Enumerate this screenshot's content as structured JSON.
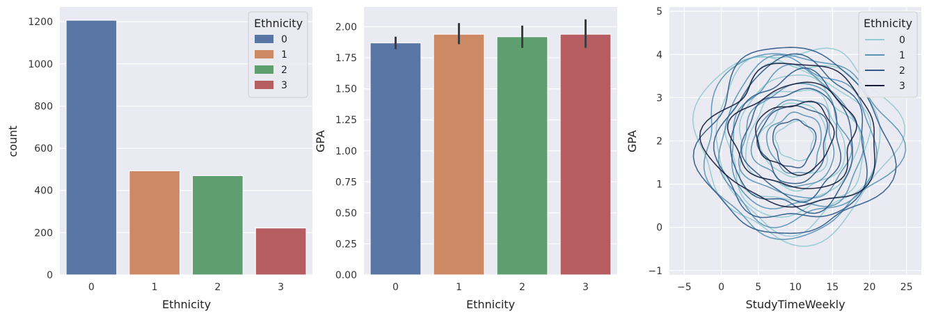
{
  "chart_data": [
    {
      "type": "bar",
      "xlabel": "Ethnicity",
      "ylabel": "count",
      "categories": [
        "0",
        "1",
        "2",
        "3"
      ],
      "values": [
        1207,
        493,
        470,
        222
      ],
      "ylim": [
        0,
        1270
      ],
      "yticks": [
        0,
        200,
        400,
        600,
        800,
        1000,
        1200
      ],
      "colors": [
        "#5875a4",
        "#cc8963",
        "#5f9e6e",
        "#b55d60"
      ],
      "grid": true,
      "legend": {
        "title": "Ethnicity",
        "position": "top-right",
        "entries": [
          "0",
          "1",
          "2",
          "3"
        ]
      }
    },
    {
      "type": "bar",
      "xlabel": "Ethnicity",
      "ylabel": "GPA",
      "categories": [
        "0",
        "1",
        "2",
        "3"
      ],
      "values": [
        1.87,
        1.94,
        1.92,
        1.94
      ],
      "errors": [
        [
          1.82,
          1.92
        ],
        [
          1.86,
          2.03
        ],
        [
          1.83,
          2.01
        ],
        [
          1.83,
          2.06
        ]
      ],
      "ylim": [
        0,
        2.16
      ],
      "yticks": [
        "0.00",
        "0.25",
        "0.50",
        "0.75",
        "1.00",
        "1.25",
        "1.50",
        "1.75",
        "2.00"
      ],
      "colors": [
        "#5875a4",
        "#cc8963",
        "#5f9e6e",
        "#b55d60"
      ],
      "grid": true
    },
    {
      "type": "kde-contour",
      "xlabel": "StudyTimeWeekly",
      "ylabel": "GPA",
      "xlim": [
        -7,
        27
      ],
      "ylim": [
        -1.1,
        5.1
      ],
      "xticks": [
        -5,
        0,
        5,
        10,
        15,
        20,
        25
      ],
      "yticks": [
        -1,
        0,
        1,
        2,
        3,
        4,
        5
      ],
      "grid": true,
      "legend": {
        "title": "Ethnicity",
        "position": "top-right",
        "entries": [
          "0",
          "1",
          "2",
          "3"
        ]
      },
      "series": [
        {
          "name": "0",
          "color": "#93cbd2",
          "center": [
            10,
            2
          ],
          "radii": [
            [
              12.3,
              2.2
            ],
            [
              11,
              1.95
            ],
            [
              9.5,
              1.7
            ],
            [
              8,
              1.45
            ],
            [
              6.5,
              1.15
            ],
            [
              4.5,
              0.85
            ],
            [
              2.5,
              0.45
            ]
          ]
        },
        {
          "name": "1",
          "color": "#5a94b6",
          "center": [
            10,
            1.95
          ],
          "radii": [
            [
              11.8,
              2.1
            ],
            [
              10.4,
              1.85
            ],
            [
              8.8,
              1.6
            ],
            [
              7.2,
              1.3
            ],
            [
              5.4,
              1.0
            ],
            [
              3.6,
              0.7
            ]
          ]
        },
        {
          "name": "2",
          "color": "#2f5a87",
          "center": [
            9.8,
            1.95
          ],
          "radii": [
            [
              11.6,
              2.15
            ],
            [
              10,
              1.85
            ],
            [
              8.2,
              1.55
            ],
            [
              6.5,
              1.25
            ],
            [
              4.5,
              0.9
            ],
            [
              2.8,
              0.55
            ]
          ]
        },
        {
          "name": "3",
          "color": "#151b39",
          "center": [
            10,
            2.1
          ],
          "radii": [
            [
              10.5,
              1.65
            ],
            [
              8.3,
              1.2
            ],
            [
              5.2,
              0.8
            ]
          ]
        }
      ]
    }
  ]
}
